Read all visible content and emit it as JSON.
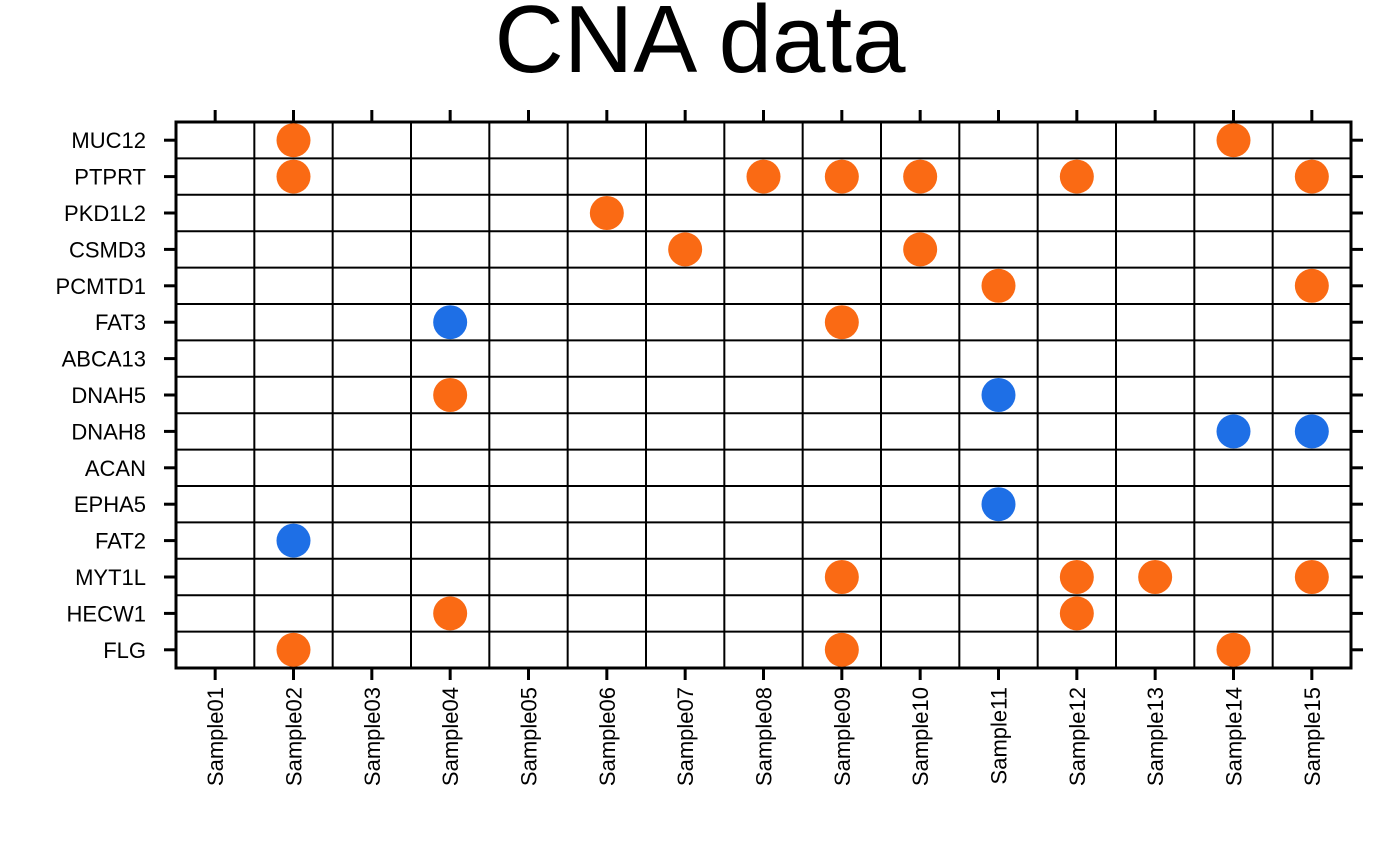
{
  "chart_data": {
    "type": "scatter",
    "title": "CNA data",
    "xlabel": "",
    "ylabel": "",
    "samples": [
      "Sample01",
      "Sample02",
      "Sample03",
      "Sample04",
      "Sample05",
      "Sample06",
      "Sample07",
      "Sample08",
      "Sample09",
      "Sample10",
      "Sample11",
      "Sample12",
      "Sample13",
      "Sample14",
      "Sample15"
    ],
    "genes": [
      "MUC12",
      "PTPRT",
      "PKD1L2",
      "CSMD3",
      "PCMTD1",
      "FAT3",
      "ABCA13",
      "DNAH5",
      "DNAH8",
      "ACAN",
      "EPHA5",
      "FAT2",
      "MYT1L",
      "HECW1",
      "FLG"
    ],
    "grid": true,
    "series": [
      {
        "color": "#fa6a14",
        "points": [
          {
            "sample": "Sample02",
            "gene": "MUC12"
          },
          {
            "sample": "Sample14",
            "gene": "MUC12"
          },
          {
            "sample": "Sample02",
            "gene": "PTPRT"
          },
          {
            "sample": "Sample08",
            "gene": "PTPRT"
          },
          {
            "sample": "Sample09",
            "gene": "PTPRT"
          },
          {
            "sample": "Sample10",
            "gene": "PTPRT"
          },
          {
            "sample": "Sample12",
            "gene": "PTPRT"
          },
          {
            "sample": "Sample15",
            "gene": "PTPRT"
          },
          {
            "sample": "Sample06",
            "gene": "PKD1L2"
          },
          {
            "sample": "Sample07",
            "gene": "CSMD3"
          },
          {
            "sample": "Sample10",
            "gene": "CSMD3"
          },
          {
            "sample": "Sample11",
            "gene": "PCMTD1"
          },
          {
            "sample": "Sample15",
            "gene": "PCMTD1"
          },
          {
            "sample": "Sample09",
            "gene": "FAT3"
          },
          {
            "sample": "Sample04",
            "gene": "DNAH5"
          },
          {
            "sample": "Sample09",
            "gene": "MYT1L"
          },
          {
            "sample": "Sample12",
            "gene": "MYT1L"
          },
          {
            "sample": "Sample13",
            "gene": "MYT1L"
          },
          {
            "sample": "Sample15",
            "gene": "MYT1L"
          },
          {
            "sample": "Sample04",
            "gene": "HECW1"
          },
          {
            "sample": "Sample12",
            "gene": "HECW1"
          },
          {
            "sample": "Sample02",
            "gene": "FLG"
          },
          {
            "sample": "Sample09",
            "gene": "FLG"
          },
          {
            "sample": "Sample14",
            "gene": "FLG"
          }
        ]
      },
      {
        "color": "#1e6fe6",
        "points": [
          {
            "sample": "Sample04",
            "gene": "FAT3"
          },
          {
            "sample": "Sample11",
            "gene": "DNAH5"
          },
          {
            "sample": "Sample14",
            "gene": "DNAH8"
          },
          {
            "sample": "Sample15",
            "gene": "DNAH8"
          },
          {
            "sample": "Sample11",
            "gene": "EPHA5"
          },
          {
            "sample": "Sample02",
            "gene": "FAT2"
          }
        ]
      }
    ]
  }
}
